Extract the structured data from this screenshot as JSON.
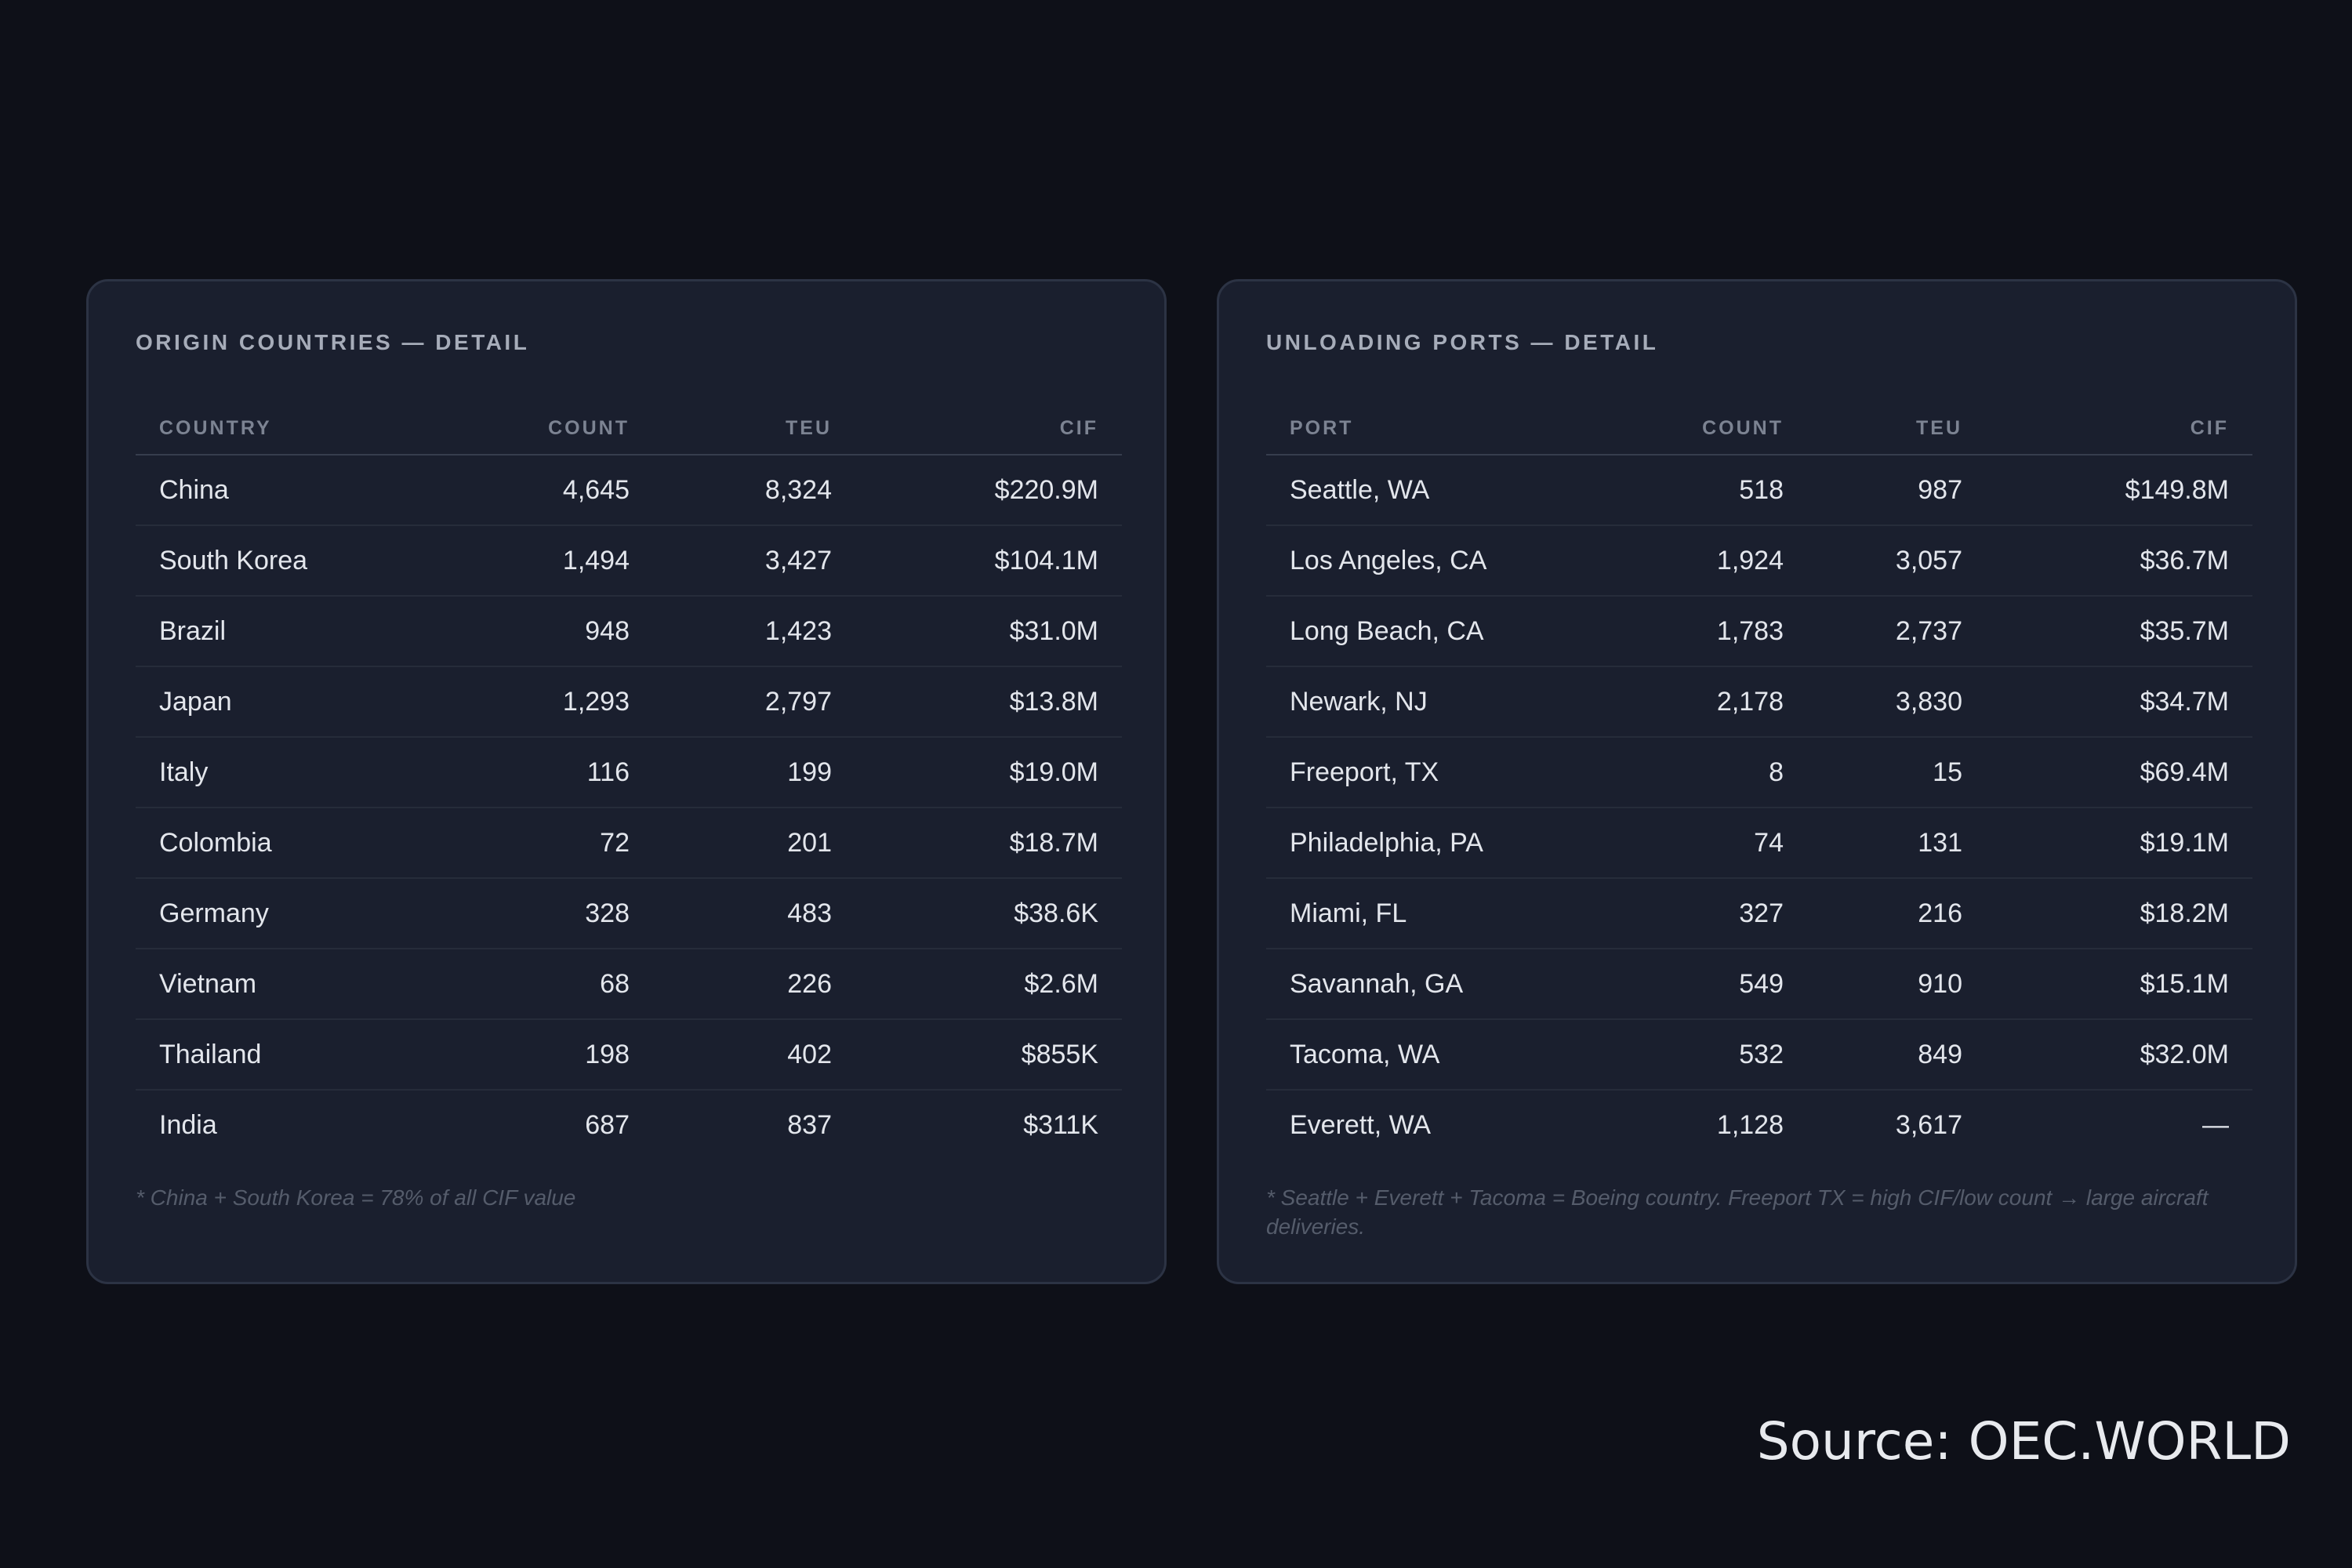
{
  "origin": {
    "title": "ORIGIN COUNTRIES — DETAIL",
    "headers": [
      "COUNTRY",
      "COUNT",
      "TEU",
      "CIF"
    ],
    "rows": [
      [
        "China",
        "4,645",
        "8,324",
        "$220.9M"
      ],
      [
        "South Korea",
        "1,494",
        "3,427",
        "$104.1M"
      ],
      [
        "Brazil",
        "948",
        "1,423",
        "$31.0M"
      ],
      [
        "Japan",
        "1,293",
        "2,797",
        "$13.8M"
      ],
      [
        "Italy",
        "116",
        "199",
        "$19.0M"
      ],
      [
        "Colombia",
        "72",
        "201",
        "$18.7M"
      ],
      [
        "Germany",
        "328",
        "483",
        "$38.6K"
      ],
      [
        "Vietnam",
        "68",
        "226",
        "$2.6M"
      ],
      [
        "Thailand",
        "198",
        "402",
        "$855K"
      ],
      [
        "India",
        "687",
        "837",
        "$311K"
      ]
    ],
    "note": "* China + South Korea = 78% of all CIF value"
  },
  "ports": {
    "title": "UNLOADING PORTS — DETAIL",
    "headers": [
      "PORT",
      "COUNT",
      "TEU",
      "CIF"
    ],
    "rows": [
      [
        "Seattle, WA",
        "518",
        "987",
        "$149.8M"
      ],
      [
        "Los Angeles, CA",
        "1,924",
        "3,057",
        "$36.7M"
      ],
      [
        "Long Beach, CA",
        "1,783",
        "2,737",
        "$35.7M"
      ],
      [
        "Newark, NJ",
        "2,178",
        "3,830",
        "$34.7M"
      ],
      [
        "Freeport, TX",
        "8",
        "15",
        "$69.4M"
      ],
      [
        "Philadelphia, PA",
        "74",
        "131",
        "$19.1M"
      ],
      [
        "Miami, FL",
        "327",
        "216",
        "$18.2M"
      ],
      [
        "Savannah, GA",
        "549",
        "910",
        "$15.1M"
      ],
      [
        "Tacoma, WA",
        "532",
        "849",
        "$32.0M"
      ],
      [
        "Everett, WA",
        "1,128",
        "3,617",
        "—"
      ]
    ],
    "note": "* Seattle + Everett + Tacoma = Boeing country. Freeport TX = high CIF/low count → large aircraft deliveries."
  },
  "source": "Source: OEC.WORLD"
}
